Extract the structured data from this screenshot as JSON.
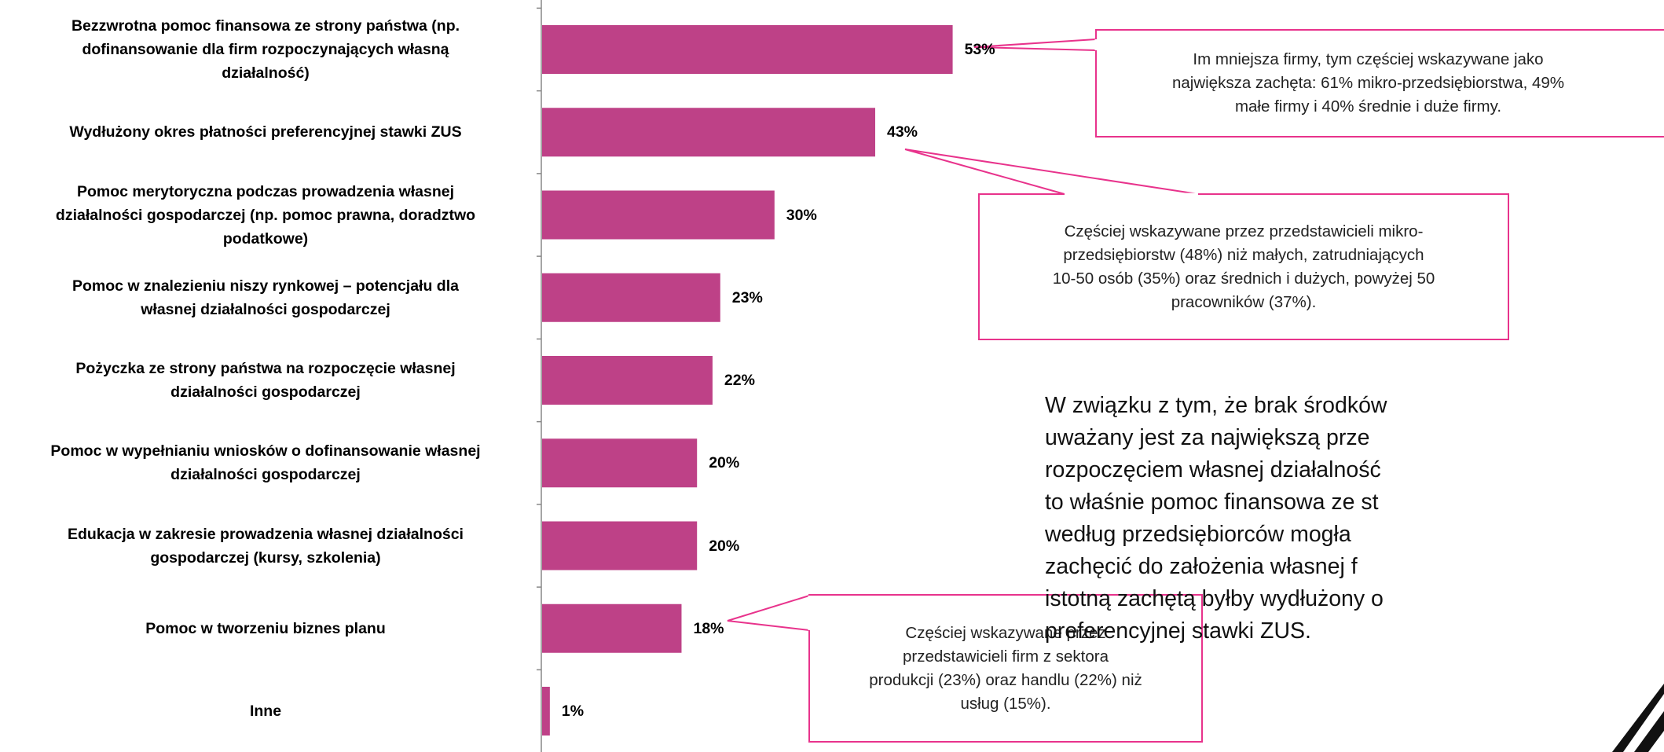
{
  "chart_data": {
    "type": "bar",
    "orientation": "horizontal",
    "bar_color": "#BE4187",
    "categories": [
      "Bezzwrotna pomoc finansowa ze strony państwa (np. dofinansowanie dla firm rozpoczynających własną działalność)",
      "Wydłużony okres płatności preferencyjnej stawki ZUS",
      "Pomoc merytoryczna podczas prowadzenia własnej działalności gospodarczej (np. pomoc prawna, doradztwo podatkowe)",
      "Pomoc w znalezieniu niszy rynkowej – potencjału dla własnej działalności gospodarczej",
      "Pożyczka ze strony państwa na rozpoczęcie własnej działalności gospodarczej",
      "Pomoc w wypełnianiu wniosków o dofinansowanie własnej działalności gospodarczej",
      "Edukacja w zakresie prowadzenia własnej działalności gospodarczej (kursy, szkolenia)",
      "Pomoc w tworzeniu biznes planu",
      "Inne"
    ],
    "values": [
      53,
      43,
      30,
      23,
      22,
      20,
      20,
      18,
      1
    ],
    "value_labels": [
      "53%",
      "43%",
      "30%",
      "23%",
      "22%",
      "20%",
      "20%",
      "18%",
      "1%"
    ],
    "unit": "%",
    "annotations": [
      "Im mniejsza firmy, tym częściej wskazywane jako największa zachęta: 61% mikro-przedsiębiorstwa, 49% małe firmy i 40% średnie i duże firmy.",
      "Częściej wskazywane przez przedstawicieli mikro-przedsiębiorstw (48%) niż małych, zatrudniających 10-50 osób (35%) oraz średnich i dużych, powyżej 50 pracowników (37%).",
      "Częściej wskazywane przez przedstawicieli firm z sektora produkcji (23%) oraz handlu (22%) niż usług (15%)."
    ],
    "grid": false,
    "legend": "none"
  },
  "labels_wrapped": [
    [
      "Bezzwrotna pomoc finansowa ze strony państwa (np.",
      "dofinansowanie dla firm rozpoczynających własną",
      "działalność)"
    ],
    [
      "Wydłużony okres płatności preferencyjnej stawki ZUS"
    ],
    [
      "Pomoc merytoryczna podczas prowadzenia własnej",
      "działalności gospodarczej (np. pomoc prawna, doradztwo",
      "podatkowe)"
    ],
    [
      "Pomoc w znalezieniu niszy rynkowej – potencjału dla",
      "własnej działalności gospodarczej"
    ],
    [
      "Pożyczka ze strony państwa na rozpoczęcie własnej",
      "działalności gospodarczej"
    ],
    [
      "Pomoc w wypełnianiu wniosków o dofinansowanie własnej",
      "działalności gospodarczej"
    ],
    [
      "Edukacja w zakresie prowadzenia własnej działalności",
      "gospodarczej (kursy, szkolenia)"
    ],
    [
      "Pomoc w tworzeniu biznes planu"
    ],
    [
      "Inne"
    ]
  ],
  "callouts_wrapped": [
    [
      "Im mniejsza firmy, tym częściej wskazywane jako",
      "największa zachęta: 61% mikro-przedsiębiorstwa, 49%",
      "małe firmy i 40% średnie i duże firmy."
    ],
    [
      "Częściej wskazywane przez przedstawicieli mikro-",
      "przedsiębiorstw (48%) niż małych, zatrudniających",
      "10-50 osób (35%) oraz średnich i dużych, powyżej 50",
      "pracowników (37%)."
    ],
    [
      "Częściej wskazywane przez",
      "przedstawicieli firm z sektora",
      "produkcji (23%) oraz handlu (22%) niż",
      "usług (15%)."
    ]
  ],
  "body_text_lines": [
    "W związku z tym, że brak środków",
    "uważany jest za największą prze",
    "rozpoczęciem własnej działalność",
    "to właśnie pomoc finansowa ze st",
    "według przedsiębiorców mogła",
    "zachęcić do założenia własnej f",
    "istotną zachętą byłby wydłużony o",
    "preferencyjnej stawki ZUS."
  ],
  "colors": {
    "bar": "#BE4187",
    "callout_border": "#E8338C",
    "axis": "#888888"
  }
}
